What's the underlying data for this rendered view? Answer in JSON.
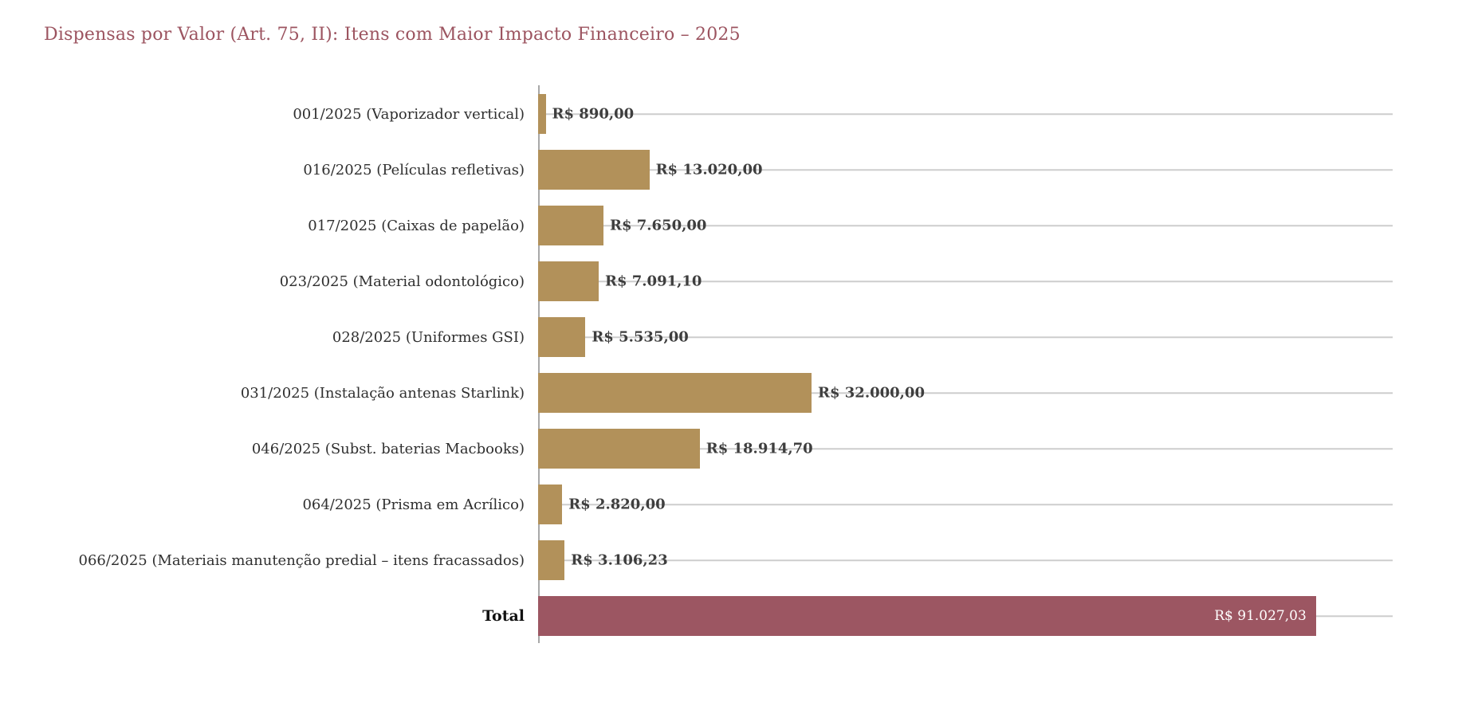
{
  "title": "Dispensas por Valor (Art. 75, II): Itens com Maior Impacto Financeiro – 2025",
  "colors": {
    "background": "#ffffff",
    "title": "#9c5460",
    "bar": "#b2915a",
    "total_bar": "#9c5662",
    "gridline": "#cdcdcd",
    "axis_line": "#a8a8a8",
    "category_label": "#2f2f2f",
    "total_category_label": "#111111",
    "value_label": "#3e3e3e",
    "total_value_label": "#ffffff"
  },
  "chart_data": {
    "type": "bar",
    "orientation": "horizontal",
    "title": "Dispensas por Valor (Art. 75, II): Itens com Maior Impacto Financeiro – 2025",
    "categories": [
      "001/2025 (Vaporizador vertical)",
      "016/2025 (Películas refletivas)",
      "017/2025 (Caixas de papelão)",
      "023/2025 (Material odontológico)",
      "028/2025 (Uniformes GSI)",
      "031/2025 (Instalação antenas Starlink)",
      "046/2025 (Subst. baterias Macbooks)",
      "064/2025 (Prisma em Acrílico)",
      "066/2025 (Materiais manutenção predial – itens fracassados)",
      "Total"
    ],
    "values": [
      890.0,
      13020.0,
      7650.0,
      7091.1,
      5535.0,
      32000.0,
      18914.7,
      2820.0,
      3106.23,
      91027.03
    ],
    "value_labels": [
      "R$ 890,00",
      "R$ 13.020,00",
      "R$ 7.650,00",
      "R$ 7.091,10",
      "R$ 5.535,00",
      "R$ 32.000,00",
      "R$ 18.914,70",
      "R$ 2.820,00",
      "R$ 3.106,23",
      "R$ 91.027,03"
    ],
    "total_category": "Total",
    "xlabel": "",
    "ylabel": "",
    "xlim": [
      0,
      100000
    ],
    "grid": true,
    "legend": false
  }
}
